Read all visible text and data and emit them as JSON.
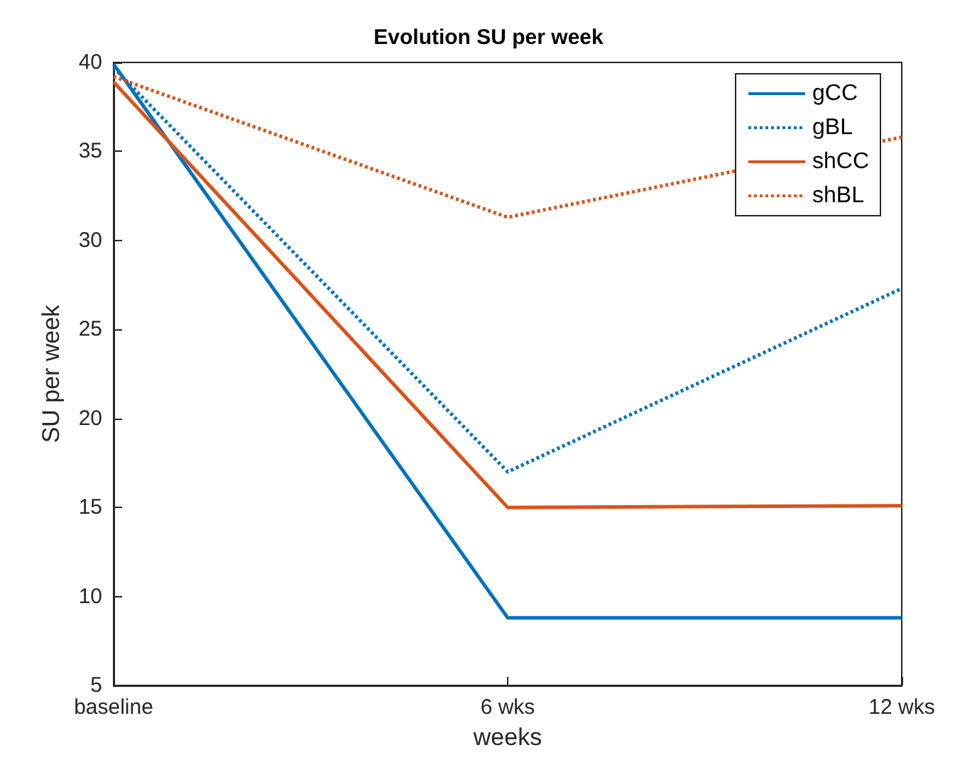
{
  "chart_data": {
    "type": "line",
    "title": "Evolution SU per week",
    "xlabel": "weeks",
    "ylabel": "SU per week",
    "categories": [
      "baseline",
      "6 wks",
      "12 wks"
    ],
    "series": [
      {
        "name": "gCC",
        "color": "#0072bd",
        "line_style": "solid",
        "values": [
          39.9,
          8.8,
          8.8
        ]
      },
      {
        "name": "gBL",
        "color": "#0072bd",
        "line_style": "dotted",
        "values": [
          39.7,
          17,
          27.3
        ]
      },
      {
        "name": "shCC",
        "color": "#d95319",
        "line_style": "solid",
        "values": [
          38.9,
          15,
          15.1
        ]
      },
      {
        "name": "shBL",
        "color": "#d95319",
        "line_style": "dotted",
        "values": [
          39.2,
          31.3,
          35.8
        ]
      }
    ],
    "ylim": [
      5,
      40
    ],
    "yticks": [
      5,
      10,
      15,
      20,
      25,
      30,
      35,
      40
    ],
    "grid": false,
    "legend": "top right",
    "marker": "none"
  }
}
